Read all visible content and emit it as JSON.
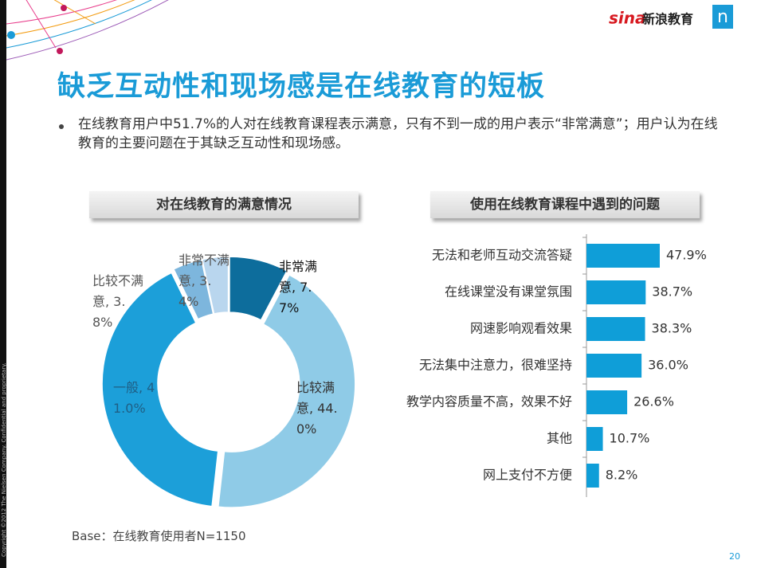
{
  "brand": {
    "sina": "sina",
    "name": "新浪教育",
    "nielsen": "n"
  },
  "title": "缺乏互动性和现场感是在线教育的短板",
  "bullet": "在线教育用户中51.7%的人对在线教育课程表示满意，只有不到一成的用户表示“非常满意”；用户认为在线教育的主要问题在于其缺乏互动性和现场感。",
  "chart_data": [
    {
      "type": "donut",
      "title": "对在线教育的满意情况",
      "values": [
        7.7,
        44.0,
        41.0,
        3.8,
        3.4
      ],
      "value_labels": [
        "非常满意, 7.7%",
        "比较满意, 44.0%",
        "一般, 41.0%",
        "比较不满意, 3.8%",
        "非常不满意, 3.4%"
      ],
      "colors": [
        "#0d6d9c",
        "#8fcbe7",
        "#1c9fd9",
        "#7db6dd",
        "#b9d6ee"
      ]
    },
    {
      "type": "bar",
      "orientation": "horizontal",
      "title": "使用在线教育课程中遇到的问题",
      "categories": [
        "无法和老师互动交流答疑",
        "在线课堂没有课堂氛围",
        "网速影响观看效果",
        "无法集中注意力，很难坚持",
        "教学内容质量不高，效果不好",
        "其他",
        "网上支付不方便"
      ],
      "values": [
        47.9,
        38.7,
        38.3,
        36.0,
        26.6,
        10.7,
        8.2
      ],
      "value_labels": [
        "47.9%",
        "38.7%",
        "38.3%",
        "36.0%",
        "26.6%",
        "10.7%",
        "8.2%"
      ],
      "color": "#0f9ed8",
      "xlim": [
        0,
        50
      ]
    }
  ],
  "footnote": "Base：在线教育使用者N=1150",
  "page_number": "20",
  "copyright": "Copyright ©2012 The Nielsen Company. Confidential and proprietary."
}
